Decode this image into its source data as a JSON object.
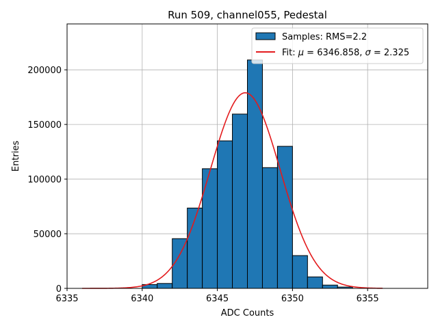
{
  "chart_data": {
    "type": "bar",
    "title": "Run 509, channel055, Pedestal",
    "xlabel": "ADC Counts",
    "ylabel": "Entries",
    "xlim": [
      6335,
      6359
    ],
    "ylim": [
      0,
      242000
    ],
    "grid": true,
    "legend_position": "top-right",
    "x_ticks": [
      6335,
      6340,
      6345,
      6350,
      6355
    ],
    "y_ticks": [
      0,
      50000,
      100000,
      150000,
      200000
    ],
    "x_tick_labels": [
      "6335",
      "6340",
      "6345",
      "6350",
      "6355"
    ],
    "y_tick_labels": [
      "0",
      "50000",
      "100000",
      "150000",
      "200000"
    ],
    "bar_color": "#1f77b4",
    "fit_color": "#e31a1c",
    "bins": {
      "edges": [
        6340,
        6341,
        6342,
        6343,
        6344,
        6345,
        6346,
        6347,
        6348,
        6349,
        6350,
        6351,
        6352,
        6353,
        6354
      ],
      "counts": [
        3500,
        4500,
        45500,
        73500,
        109500,
        135000,
        159500,
        209000,
        110500,
        130000,
        30000,
        10500,
        3000,
        1200
      ]
    },
    "fit": {
      "mu": 6346.858,
      "sigma": 2.325,
      "amplitude": 179000,
      "x_range": [
        6336,
        6356
      ]
    },
    "legend": {
      "samples_label": "Samples: RMS=2.2",
      "fit_label_prefix": "Fit: ",
      "mu_symbol": "μ",
      "mu_text": " = 6346.858, ",
      "sigma_symbol": "σ",
      "sigma_text": " = 2.325"
    }
  }
}
